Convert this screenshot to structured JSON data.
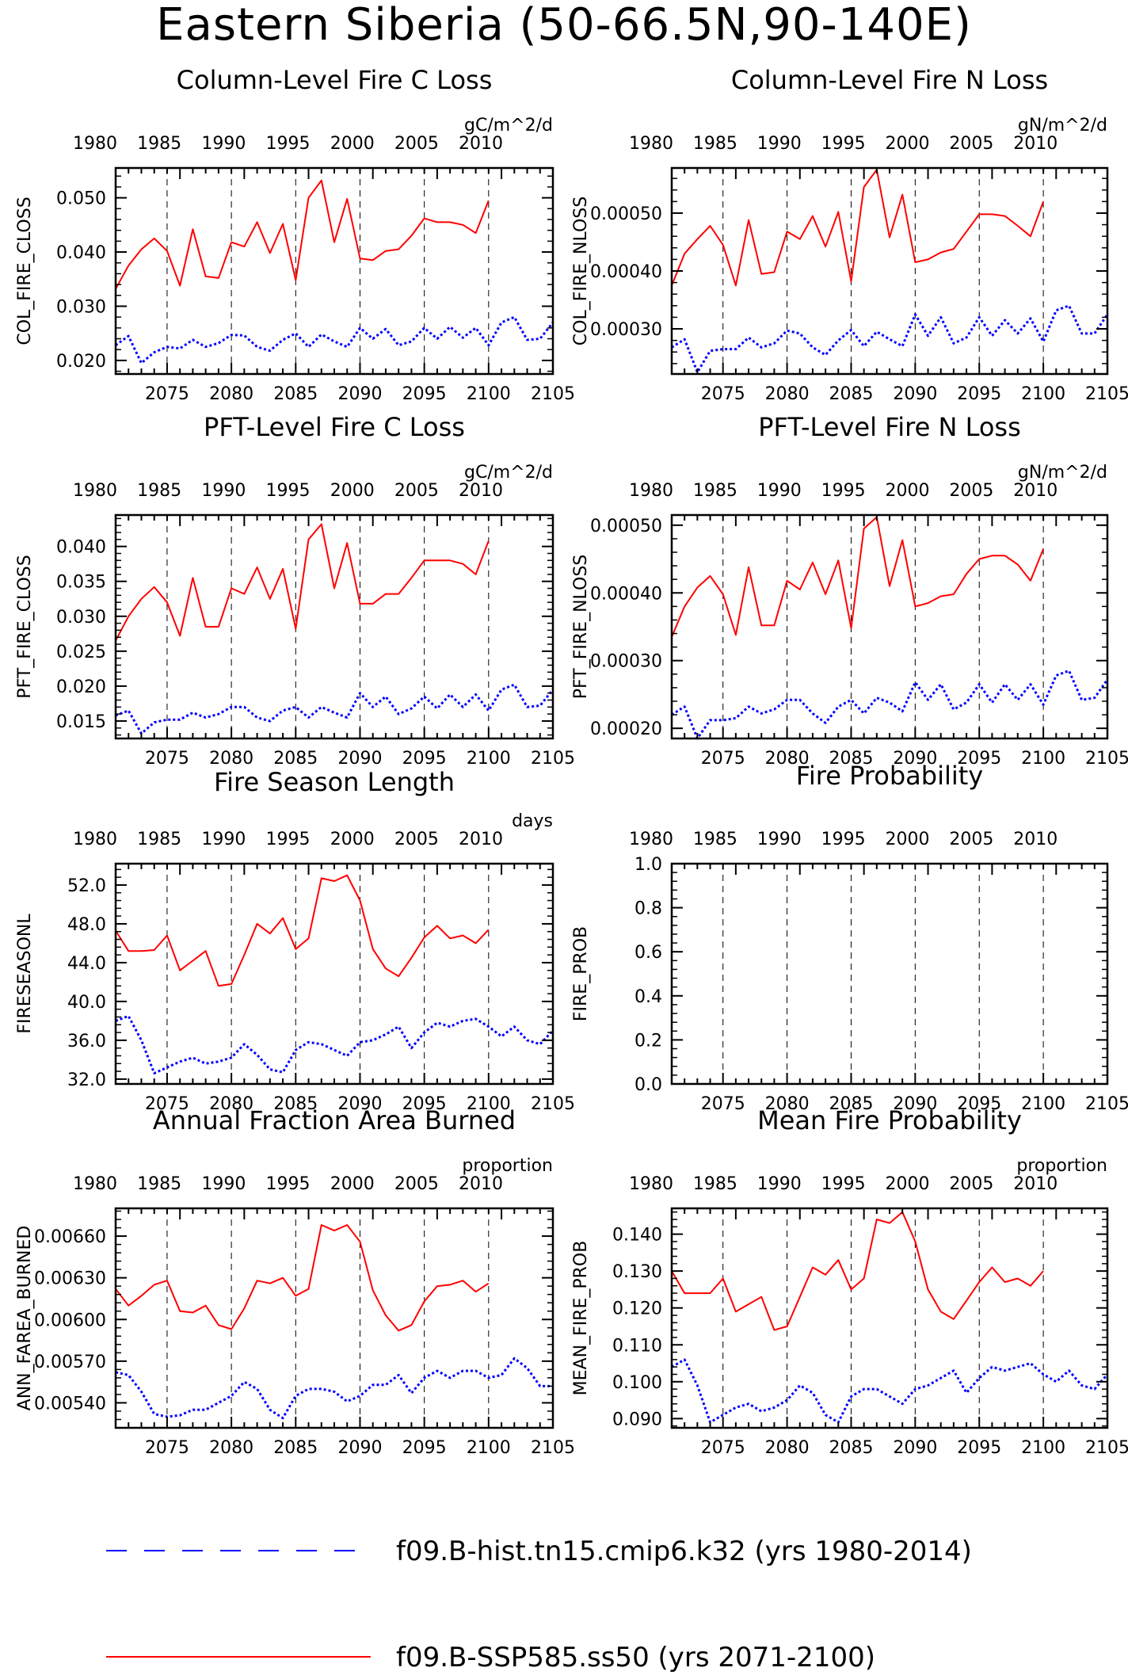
{
  "page": {
    "title": "Eastern Siberia (50-66.5N,90-140E)"
  },
  "colors": {
    "hist": "#0000ff",
    "ssp": "#ff0000",
    "axis": "#000000",
    "grid": "#000000"
  },
  "axes_common": {
    "bottom_xlim": [
      2071,
      2105
    ],
    "bottom_ticks": [
      2075,
      2080,
      2085,
      2090,
      2095,
      2100,
      2105
    ],
    "top_ticks": [
      1980,
      1985,
      1990,
      1995,
      2000,
      2005,
      2010
    ],
    "top_tick_positions_year": [
      2071,
      2076,
      2081,
      2086,
      2091,
      2096,
      2101
    ]
  },
  "legend": {
    "hist_label": "f09.B-hist.tn15.cmip6.k32 (yrs 1980-2014)",
    "ssp_label": "f09.B-SSP585.ss50 (yrs 2071-2100)"
  },
  "chart_data": [
    {
      "id": "col_fire_closs",
      "type": "line",
      "title": "Column-Level Fire C Loss",
      "units": "gC/m^2/d",
      "ylabel": "COL_FIRE_CLOSS",
      "ylim": [
        0.0175,
        0.0555
      ],
      "yticks": [
        0.02,
        0.03,
        0.04,
        0.05
      ],
      "ytick_labels": [
        "0.020",
        "0.030",
        "0.040",
        "0.050"
      ],
      "series": [
        {
          "name": "f09.B-hist.tn15.cmip6.k32 (yrs 1980-2014)",
          "x_start": 2071,
          "values": [
            0.0228,
            0.0245,
            0.0195,
            0.0215,
            0.0225,
            0.0222,
            0.0238,
            0.0225,
            0.0232,
            0.0247,
            0.0246,
            0.0225,
            0.0218,
            0.0238,
            0.025,
            0.0225,
            0.0248,
            0.0235,
            0.0225,
            0.026,
            0.024,
            0.0258,
            0.0228,
            0.0235,
            0.026,
            0.024,
            0.0262,
            0.0242,
            0.026,
            0.0228,
            0.027,
            0.028,
            0.0238,
            0.024,
            0.027
          ]
        },
        {
          "name": "f09.B-SSP585.ss50 (yrs 2071-2100)",
          "x_start": 2071,
          "values": [
            0.0332,
            0.0375,
            0.0405,
            0.0425,
            0.0402,
            0.0338,
            0.0442,
            0.0355,
            0.0352,
            0.0418,
            0.041,
            0.0455,
            0.0398,
            0.0452,
            0.0348,
            0.05,
            0.0532,
            0.0418,
            0.0498,
            0.0388,
            0.0385,
            0.0402,
            0.0405,
            0.043,
            0.0462,
            0.0455,
            0.0455,
            0.045,
            0.0435,
            0.0495
          ]
        }
      ]
    },
    {
      "id": "col_fire_nloss",
      "type": "line",
      "title": "Column-Level Fire N Loss",
      "units": "gN/m^2/d",
      "ylabel": "COL_FIRE_NLOSS",
      "ylim": [
        0.000222,
        0.000578
      ],
      "yticks": [
        0.0003,
        0.0004,
        0.0005
      ],
      "ytick_labels": [
        "0.00030",
        "0.00040",
        "0.00050"
      ],
      "series": [
        {
          "name": "f09.B-hist.tn15.cmip6.k32 (yrs 1980-2014)",
          "x_start": 2071,
          "values": [
            0.000268,
            0.000282,
            0.000225,
            0.000262,
            0.000265,
            0.000265,
            0.000285,
            0.000268,
            0.000275,
            0.000297,
            0.000292,
            0.000268,
            0.000255,
            0.00028,
            0.000298,
            0.00027,
            0.000295,
            0.000282,
            0.00027,
            0.000325,
            0.000288,
            0.00032,
            0.000275,
            0.000285,
            0.00032,
            0.000288,
            0.000315,
            0.000292,
            0.000318,
            0.000278,
            0.000332,
            0.00034,
            0.000292,
            0.000292,
            0.000325
          ]
        },
        {
          "name": "f09.B-SSP585.ss50 (yrs 2071-2100)",
          "x_start": 2071,
          "values": [
            0.000375,
            0.00043,
            0.000455,
            0.000478,
            0.000445,
            0.000375,
            0.000488,
            0.000395,
            0.000398,
            0.000468,
            0.000455,
            0.000495,
            0.000442,
            0.000502,
            0.000382,
            0.000545,
            0.000575,
            0.000458,
            0.000532,
            0.000415,
            0.00042,
            0.000432,
            0.000438,
            0.000468,
            0.000498,
            0.000498,
            0.000495,
            0.000478,
            0.00046,
            0.00052
          ]
        }
      ]
    },
    {
      "id": "pft_fire_closs",
      "type": "line",
      "title": "PFT-Level Fire C Loss",
      "units": "gC/m^2/d",
      "ylabel": "PFT_FIRE_CLOSS",
      "ylim": [
        0.0125,
        0.0445
      ],
      "yticks": [
        0.015,
        0.02,
        0.025,
        0.03,
        0.035,
        0.04
      ],
      "ytick_labels": [
        "0.015",
        "0.020",
        "0.025",
        "0.030",
        "0.035",
        "0.040"
      ],
      "series": [
        {
          "name": "f09.B-hist.tn15.cmip6.k32 (yrs 1980-2014)",
          "x_start": 2071,
          "values": [
            0.0158,
            0.0165,
            0.0132,
            0.0148,
            0.0152,
            0.0152,
            0.0162,
            0.0155,
            0.016,
            0.017,
            0.017,
            0.0155,
            0.015,
            0.0165,
            0.017,
            0.0155,
            0.017,
            0.0162,
            0.0155,
            0.019,
            0.017,
            0.0185,
            0.016,
            0.0168,
            0.0185,
            0.0168,
            0.0188,
            0.017,
            0.0188,
            0.0165,
            0.0195,
            0.0202,
            0.017,
            0.0172,
            0.0195
          ]
        },
        {
          "name": "f09.B-SSP585.ss50 (yrs 2071-2100)",
          "x_start": 2071,
          "values": [
            0.0265,
            0.03,
            0.0325,
            0.0342,
            0.032,
            0.0272,
            0.0355,
            0.0285,
            0.0285,
            0.034,
            0.0332,
            0.037,
            0.0325,
            0.0368,
            0.0282,
            0.041,
            0.0432,
            0.034,
            0.0405,
            0.0318,
            0.0318,
            0.0332,
            0.0332,
            0.0355,
            0.038,
            0.038,
            0.038,
            0.0375,
            0.036,
            0.0408
          ]
        }
      ]
    },
    {
      "id": "pft_fire_nloss",
      "type": "line",
      "title": "PFT-Level Fire N Loss",
      "units": "gN/m^2/d",
      "ylabel": "PFT_FIRE_NLOSS",
      "ylim": [
        0.000185,
        0.000515
      ],
      "yticks": [
        0.0002,
        0.0003,
        0.0004,
        0.0005
      ],
      "ytick_labels": [
        "0.00020",
        "0.00030",
        "0.00040",
        "0.00050"
      ],
      "series": [
        {
          "name": "f09.B-hist.tn15.cmip6.k32 (yrs 1980-2014)",
          "x_start": 2071,
          "values": [
            0.00022,
            0.000232,
            0.000185,
            0.000212,
            0.000212,
            0.000215,
            0.000232,
            0.000222,
            0.000228,
            0.000242,
            0.000242,
            0.000222,
            0.000208,
            0.000232,
            0.000242,
            0.000222,
            0.000245,
            0.000238,
            0.000225,
            0.000268,
            0.000242,
            0.000265,
            0.000228,
            0.000238,
            0.000265,
            0.000238,
            0.000265,
            0.000242,
            0.000265,
            0.000235,
            0.000278,
            0.000285,
            0.000242,
            0.000245,
            0.000272
          ]
        },
        {
          "name": "f09.B-SSP585.ss50 (yrs 2071-2100)",
          "x_start": 2071,
          "values": [
            0.000335,
            0.00038,
            0.000408,
            0.000425,
            0.000398,
            0.000338,
            0.000438,
            0.000352,
            0.000352,
            0.000418,
            0.000405,
            0.000445,
            0.000398,
            0.000448,
            0.000348,
            0.000495,
            0.000512,
            0.00041,
            0.000478,
            0.00038,
            0.000385,
            0.000395,
            0.000398,
            0.000428,
            0.00045,
            0.000455,
            0.000455,
            0.000442,
            0.000418,
            0.000465
          ]
        }
      ]
    },
    {
      "id": "fireseasonl",
      "type": "line",
      "title": "Fire Season Length",
      "units": "days",
      "ylabel": "FIRESEASONL",
      "ylim": [
        31.5,
        54.2
      ],
      "yticks": [
        32,
        36,
        40,
        44,
        48,
        52
      ],
      "ytick_labels": [
        "32.0",
        "36.0",
        "40.0",
        "44.0",
        "48.0",
        "52.0"
      ],
      "series": [
        {
          "name": "f09.B-hist.tn15.cmip6.k32 (yrs 1980-2014)",
          "x_start": 2071,
          "values": [
            38,
            38.5,
            36,
            32.6,
            33.2,
            33.8,
            34.2,
            33.6,
            33.8,
            34.2,
            35.6,
            34.5,
            33,
            32.7,
            35,
            35.8,
            35.6,
            35,
            34.4,
            35.8,
            36,
            36.6,
            37.4,
            35.2,
            36.8,
            37.8,
            37.4,
            38,
            38.2,
            37.4,
            36.4,
            37.4,
            36,
            35.6,
            37
          ]
        },
        {
          "name": "f09.B-SSP585.ss50 (yrs 2071-2100)",
          "x_start": 2071,
          "values": [
            47.3,
            45.2,
            45.2,
            45.3,
            46.8,
            43.2,
            44.2,
            45.2,
            41.6,
            41.8,
            44.8,
            48,
            47,
            48.6,
            45.4,
            46.5,
            52.7,
            52.4,
            53,
            50.4,
            45.4,
            43.4,
            42.6,
            44.5,
            46.6,
            47.8,
            46.5,
            46.8,
            46,
            47.4
          ]
        }
      ]
    },
    {
      "id": "fire_prob",
      "type": "line",
      "title": "Fire Probability",
      "units": "",
      "ylabel": "FIRE_PROB",
      "ylim": [
        0.0,
        1.0
      ],
      "yticks": [
        0.0,
        0.2,
        0.4,
        0.6,
        0.8,
        1.0
      ],
      "ytick_labels": [
        "0.0",
        "0.2",
        "0.4",
        "0.6",
        "0.8",
        "1.0"
      ],
      "series": []
    },
    {
      "id": "ann_farea_burned",
      "type": "line",
      "title": "Annual Fraction Area Burned",
      "units": "proportion",
      "ylabel": "ANN_FAREA_BURNED",
      "ylim": [
        0.00522,
        0.0068
      ],
      "yticks": [
        0.0054,
        0.0057,
        0.006,
        0.0063,
        0.0066
      ],
      "ytick_labels": [
        "0.00540",
        "0.00570",
        "0.00600",
        "0.00630",
        "0.00660"
      ],
      "series": [
        {
          "name": "f09.B-hist.tn15.cmip6.k32 (yrs 1980-2014)",
          "x_start": 2071,
          "values": [
            0.00562,
            0.0056,
            0.00548,
            0.00532,
            0.0053,
            0.00531,
            0.00535,
            0.00535,
            0.0054,
            0.00545,
            0.00555,
            0.0055,
            0.00535,
            0.00529,
            0.00545,
            0.0055,
            0.0055,
            0.00548,
            0.00541,
            0.00545,
            0.00553,
            0.00553,
            0.0056,
            0.00547,
            0.00558,
            0.00563,
            0.00558,
            0.00563,
            0.00563,
            0.00558,
            0.0056,
            0.00572,
            0.00565,
            0.00552,
            0.00552
          ]
        },
        {
          "name": "f09.B-SSP585.ss50 (yrs 2071-2100)",
          "x_start": 2071,
          "values": [
            0.00622,
            0.0061,
            0.00617,
            0.00625,
            0.00628,
            0.00606,
            0.00605,
            0.0061,
            0.00596,
            0.00593,
            0.00608,
            0.00628,
            0.00626,
            0.0063,
            0.00617,
            0.00622,
            0.00668,
            0.00664,
            0.00668,
            0.00656,
            0.00621,
            0.00603,
            0.00592,
            0.00596,
            0.00613,
            0.00624,
            0.00625,
            0.00628,
            0.0062,
            0.00626
          ]
        }
      ]
    },
    {
      "id": "mean_fire_prob",
      "type": "line",
      "title": "Mean Fire Probability",
      "units": "proportion",
      "ylabel": "MEAN_FIRE_PROB",
      "ylim": [
        0.0875,
        0.147
      ],
      "yticks": [
        0.09,
        0.1,
        0.11,
        0.12,
        0.13,
        0.14
      ],
      "ytick_labels": [
        "0.090",
        "0.100",
        "0.110",
        "0.120",
        "0.130",
        "0.140"
      ],
      "series": [
        {
          "name": "f09.B-hist.tn15.cmip6.k32 (yrs 1980-2014)",
          "x_start": 2071,
          "values": [
            0.104,
            0.106,
            0.099,
            0.089,
            0.091,
            0.093,
            0.094,
            0.092,
            0.093,
            0.095,
            0.099,
            0.097,
            0.091,
            0.089,
            0.096,
            0.098,
            0.098,
            0.096,
            0.094,
            0.098,
            0.099,
            0.101,
            0.103,
            0.097,
            0.101,
            0.104,
            0.103,
            0.104,
            0.105,
            0.102,
            0.1,
            0.103,
            0.099,
            0.098,
            0.102
          ]
        },
        {
          "name": "f09.B-SSP585.ss50 (yrs 2071-2100)",
          "x_start": 2071,
          "values": [
            0.13,
            0.124,
            0.124,
            0.124,
            0.128,
            0.119,
            0.121,
            0.123,
            0.114,
            0.115,
            0.123,
            0.131,
            0.129,
            0.133,
            0.125,
            0.128,
            0.144,
            0.143,
            0.146,
            0.138,
            0.125,
            0.119,
            0.117,
            0.122,
            0.127,
            0.131,
            0.127,
            0.128,
            0.126,
            0.13
          ]
        }
      ]
    }
  ]
}
